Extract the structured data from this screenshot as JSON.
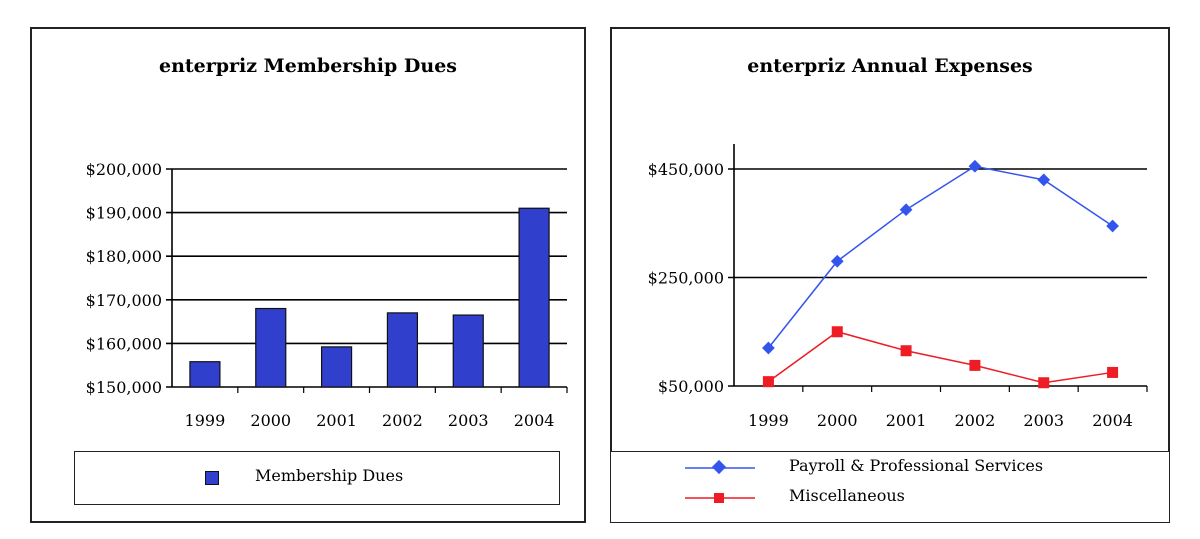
{
  "chart_data": [
    {
      "type": "bar",
      "title": "enterpriz Membership Dues",
      "categories": [
        "1999",
        "2000",
        "2001",
        "2002",
        "2003",
        "2004"
      ],
      "series": [
        {
          "name": "Membership Dues",
          "values": [
            155800,
            168000,
            159200,
            167000,
            166500,
            191000
          ]
        }
      ],
      "yticks": [
        "$150,000",
        "$160,000",
        "$170,000",
        "$180,000",
        "$190,000",
        "$200,000"
      ],
      "ylim": [
        150000,
        200000
      ],
      "grid": true,
      "legend": "bottom",
      "color": "#3040cc"
    },
    {
      "type": "line",
      "title": "enterpriz Annual Expenses",
      "categories": [
        "1999",
        "2000",
        "2001",
        "2002",
        "2003",
        "2004"
      ],
      "series": [
        {
          "name": "Payroll & Professional Services",
          "values": [
            120000,
            280000,
            375000,
            455000,
            430000,
            345000
          ],
          "color": "#3355ee",
          "marker": "diamond"
        },
        {
          "name": "Miscellaneous",
          "values": [
            58000,
            150000,
            115000,
            88000,
            56000,
            75000
          ],
          "color": "#ee1c24",
          "marker": "square"
        }
      ],
      "yticks": [
        "$50,000",
        "$250,000",
        "$450,000"
      ],
      "ylim": [
        50000,
        450000
      ],
      "grid": true,
      "legend": "bottom"
    }
  ]
}
